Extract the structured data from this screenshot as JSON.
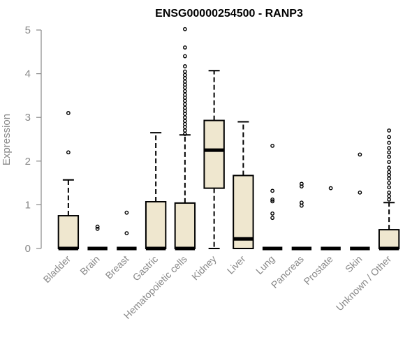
{
  "chart_data": {
    "type": "boxplot",
    "title": "ENSG00000254500 - RANP3",
    "xlabel": "",
    "ylabel": "Expression",
    "ylim": [
      0,
      5
    ],
    "yticks": [
      "0",
      "1",
      "2",
      "3",
      "4",
      "5"
    ],
    "grid": false,
    "legend": "none",
    "categories": [
      "Bladder",
      "Brain",
      "Breast",
      "Gastric",
      "Hematopoietic cells",
      "Kidney",
      "Liver",
      "Lung",
      "Pancreas",
      "Prostate",
      "Skin",
      "Unknown / Other"
    ],
    "boxes": [
      {
        "q1": 0,
        "median": 0,
        "q3": 0.75,
        "whisker_low": 0,
        "whisker_high": 1.57,
        "outliers": [
          2.2,
          3.1
        ]
      },
      {
        "q1": 0,
        "median": 0,
        "q3": 0,
        "whisker_low": 0,
        "whisker_high": 0,
        "outliers": [
          0.45,
          0.5
        ]
      },
      {
        "q1": 0,
        "median": 0,
        "q3": 0,
        "whisker_low": 0,
        "whisker_high": 0,
        "outliers": [
          0.35,
          0.82
        ]
      },
      {
        "q1": 0,
        "median": 0,
        "q3": 1.07,
        "whisker_low": 0,
        "whisker_high": 2.65,
        "outliers": []
      },
      {
        "q1": 0,
        "median": 0,
        "q3": 1.04,
        "whisker_low": 0,
        "whisker_high": 2.6,
        "outliers": [
          2.62,
          2.7,
          2.78,
          2.85,
          2.92,
          3.0,
          3.08,
          3.15,
          3.22,
          3.3,
          3.38,
          3.45,
          3.52,
          3.6,
          3.68,
          3.75,
          3.82,
          3.9,
          3.97,
          4.05,
          4.17,
          4.4,
          4.6,
          5.02
        ]
      },
      {
        "q1": 1.38,
        "median": 2.25,
        "q3": 2.93,
        "whisker_low": 0,
        "whisker_high": 4.07,
        "outliers": []
      },
      {
        "q1": 0,
        "median": 0.22,
        "q3": 1.67,
        "whisker_low": 0,
        "whisker_high": 2.9,
        "outliers": []
      },
      {
        "q1": 0,
        "median": 0,
        "q3": 0,
        "whisker_low": 0,
        "whisker_high": 0,
        "outliers": [
          0.7,
          0.8,
          1.08,
          1.12,
          1.32,
          2.35
        ]
      },
      {
        "q1": 0,
        "median": 0,
        "q3": 0,
        "whisker_low": 0,
        "whisker_high": 0,
        "outliers": [
          0.98,
          1.05,
          1.42,
          1.48
        ]
      },
      {
        "q1": 0,
        "median": 0,
        "q3": 0,
        "whisker_low": 0,
        "whisker_high": 0,
        "outliers": [
          1.38
        ]
      },
      {
        "q1": 0,
        "median": 0,
        "q3": 0,
        "whisker_low": 0,
        "whisker_high": 0,
        "outliers": [
          1.28,
          2.15
        ]
      },
      {
        "q1": 0,
        "median": 0,
        "q3": 0.43,
        "whisker_low": 0,
        "whisker_high": 1.05,
        "outliers": [
          1.12,
          1.2,
          1.28,
          1.4,
          1.5,
          1.6,
          1.68,
          1.75,
          1.85,
          1.98,
          2.1,
          2.2,
          2.3,
          2.42,
          2.55,
          2.7
        ]
      }
    ],
    "colors": {
      "box_fill": "#efe7cf",
      "box_stroke": "#000000",
      "axis": "#888888",
      "tick_label": "#888888"
    }
  }
}
